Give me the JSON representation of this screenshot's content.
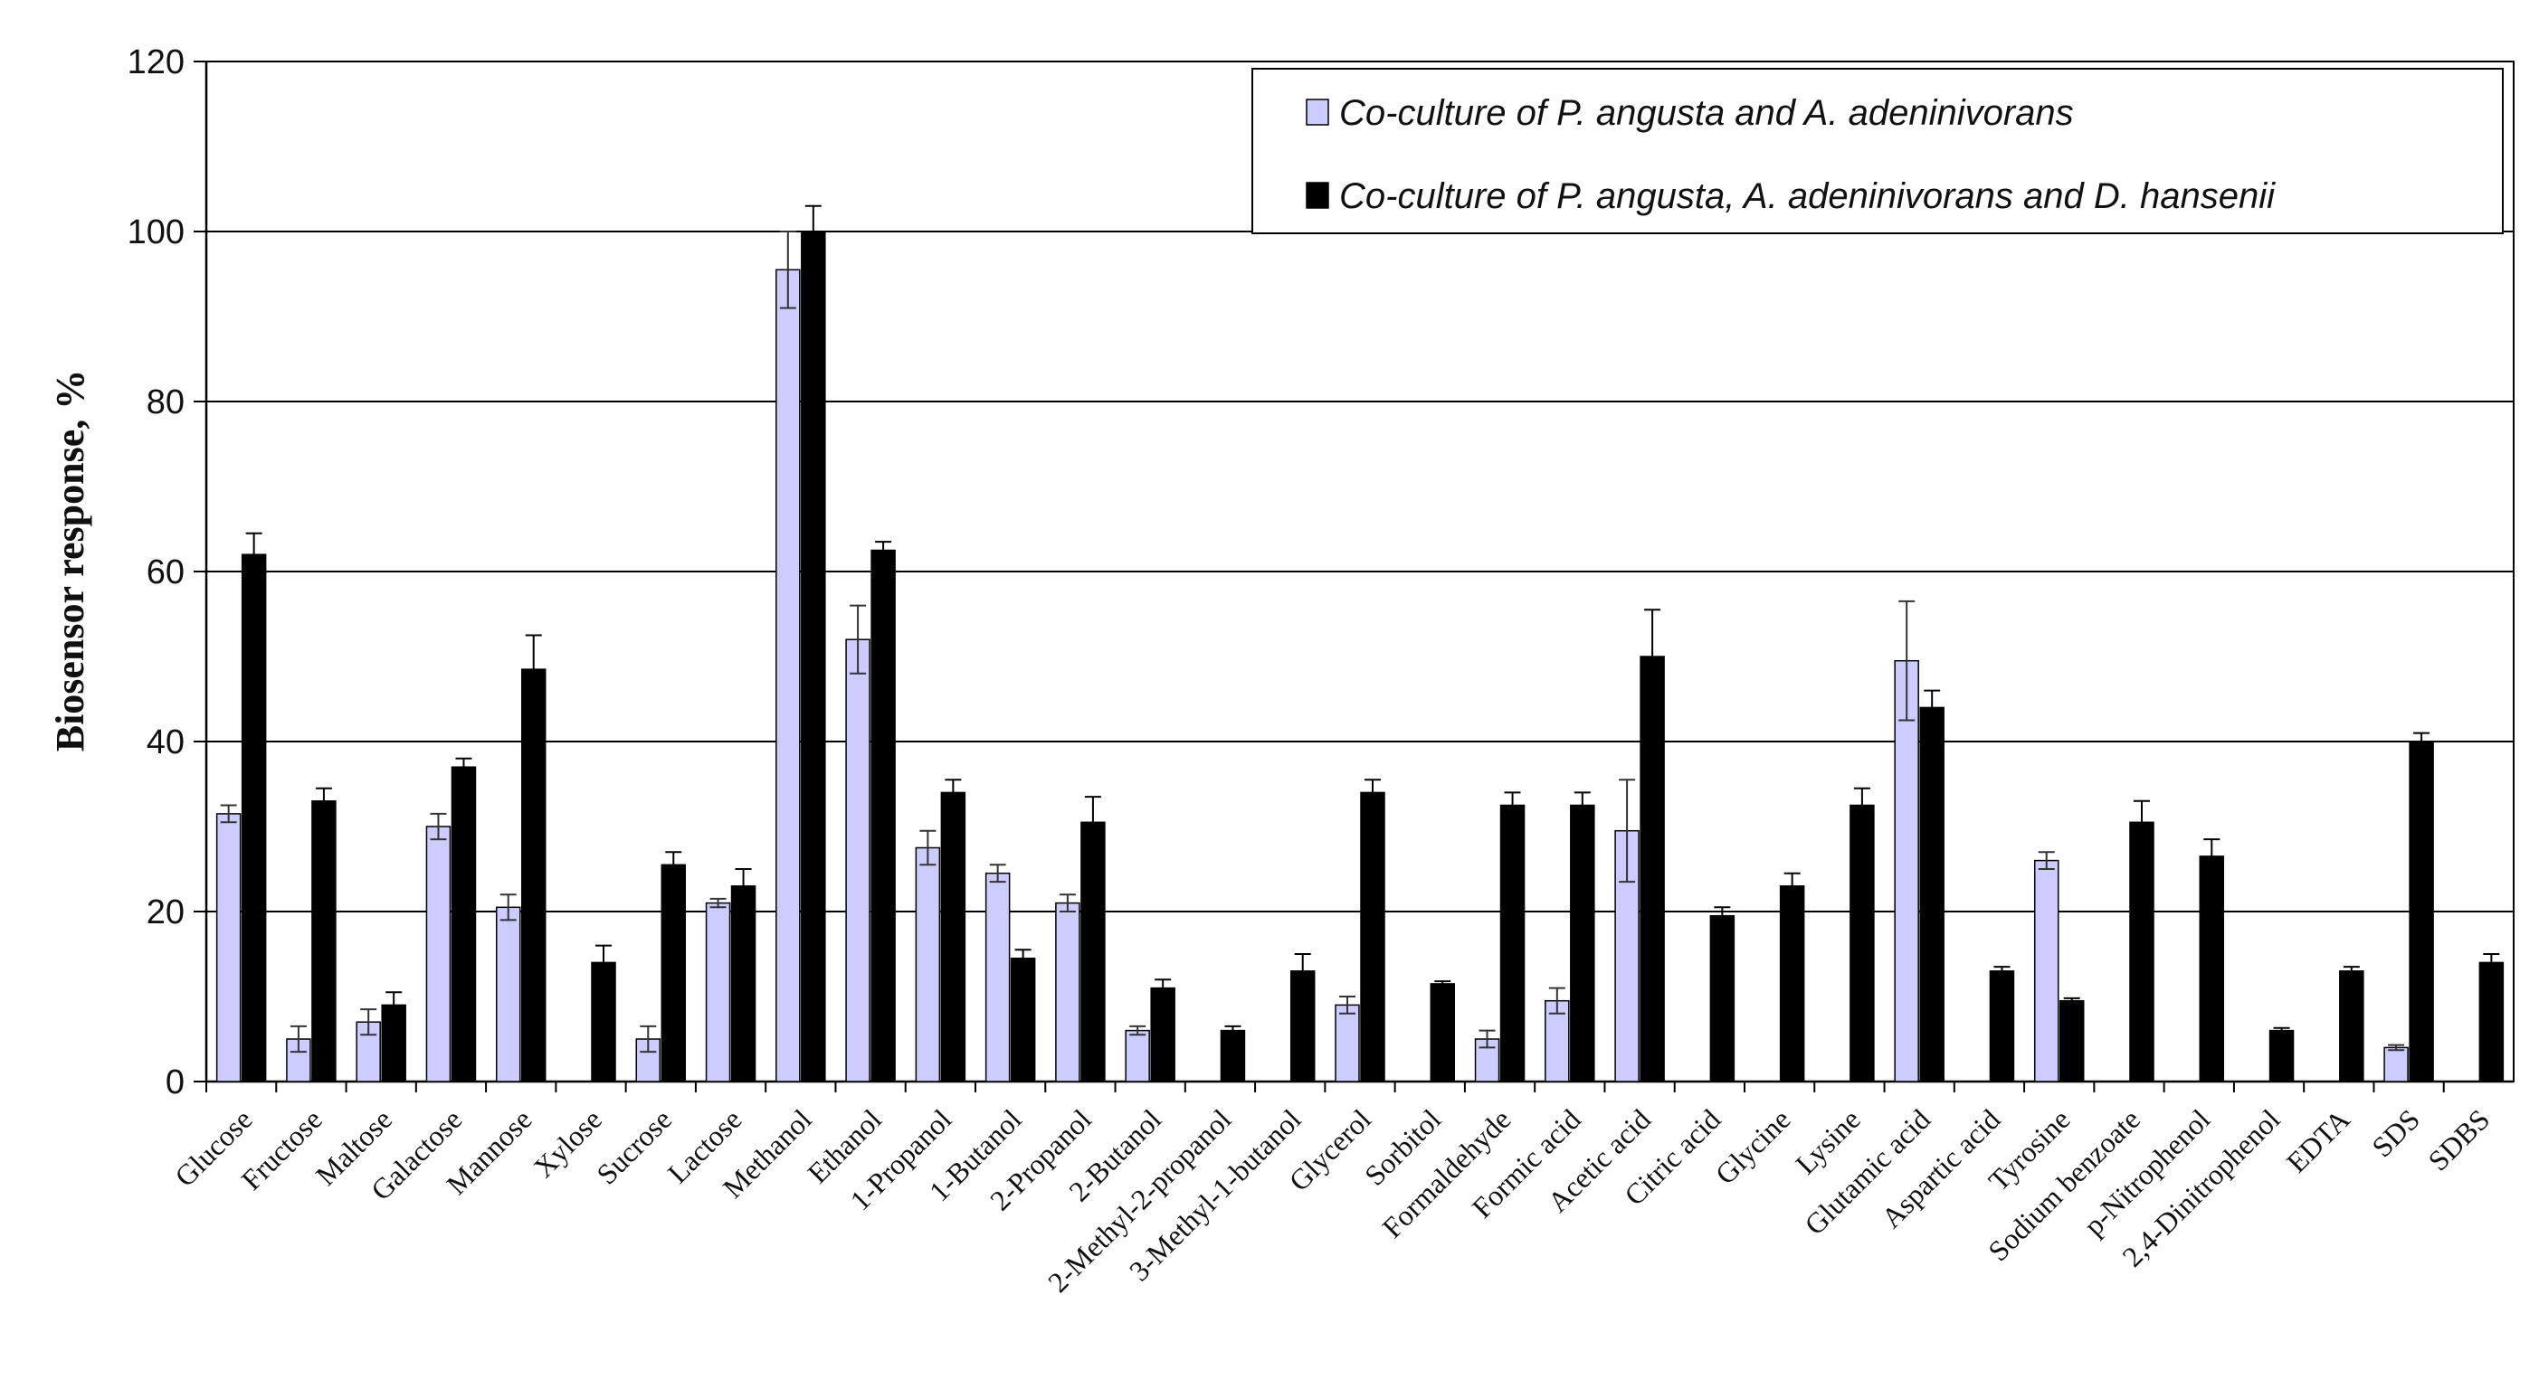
{
  "chart_data": {
    "type": "bar",
    "title": "",
    "xlabel": "",
    "ylabel": "Biosensor response, %",
    "ylim": [
      0,
      120
    ],
    "yticks": [
      0,
      20,
      40,
      60,
      80,
      100,
      120
    ],
    "grid": true,
    "legend_position": "top-right",
    "categories": [
      "Glucose",
      "Fructose",
      "Maltose",
      "Galactose",
      "Mannose",
      "Xylose",
      "Sucrose",
      "Lactose",
      "Methanol",
      "Ethanol",
      "1-Propanol",
      "1-Butanol",
      "2-Propanol",
      "2-Butanol",
      "2-Methyl-2-propanol",
      "3-Methyl-1-butanol",
      "Glycerol",
      "Sorbitol",
      "Formaldehyde",
      "Formic acid",
      "Acetic acid",
      "Citric acid",
      "Glycine",
      "Lysine",
      "Glutamic acid",
      "Aspartic acid",
      "Tyrosine",
      "Sodium benzoate",
      "p-Nitrophenol",
      "2,4-Dinitrophenol",
      "EDTA",
      "SDS",
      "SDBS"
    ],
    "series": [
      {
        "name": "Co-culture of P. angusta and A. adeninivorans",
        "color": "#ccccff",
        "values": [
          31.5,
          5,
          7,
          30,
          20.5,
          0,
          5,
          21,
          95.5,
          52,
          27.5,
          24.5,
          21,
          6,
          0,
          0,
          9,
          0,
          5,
          9.5,
          29.5,
          0,
          0,
          0,
          49.5,
          0,
          26,
          0,
          0,
          0,
          0,
          4,
          0
        ],
        "errors": [
          1,
          1.5,
          1.5,
          1.5,
          1.5,
          0,
          1.5,
          0.5,
          4.5,
          4,
          2,
          1,
          1,
          0.5,
          0,
          0,
          1,
          0,
          1,
          1.5,
          6,
          0,
          0,
          0,
          7,
          0,
          1,
          0,
          0,
          0,
          0,
          0.3,
          0
        ]
      },
      {
        "name": "Co-culture of P. angusta, A. adeninivorans and D. hansenii",
        "color": "#000000",
        "values": [
          62,
          33,
          9,
          37,
          48.5,
          14,
          25.5,
          23,
          100,
          62.5,
          34,
          14.5,
          30.5,
          11,
          6,
          13,
          34,
          11.5,
          32.5,
          32.5,
          50,
          19.5,
          23,
          32.5,
          44,
          13,
          9.5,
          30.5,
          26.5,
          6,
          13,
          40,
          14
        ],
        "errors": [
          2.5,
          1.5,
          1.5,
          1,
          4,
          2,
          1.5,
          2,
          3,
          1,
          1.5,
          1,
          3,
          1,
          0.5,
          2,
          1.5,
          0.3,
          1.5,
          1.5,
          5.5,
          1,
          1.5,
          2,
          2,
          0.5,
          0.3,
          2.5,
          2,
          0.3,
          0.5,
          1,
          1
        ]
      }
    ]
  }
}
